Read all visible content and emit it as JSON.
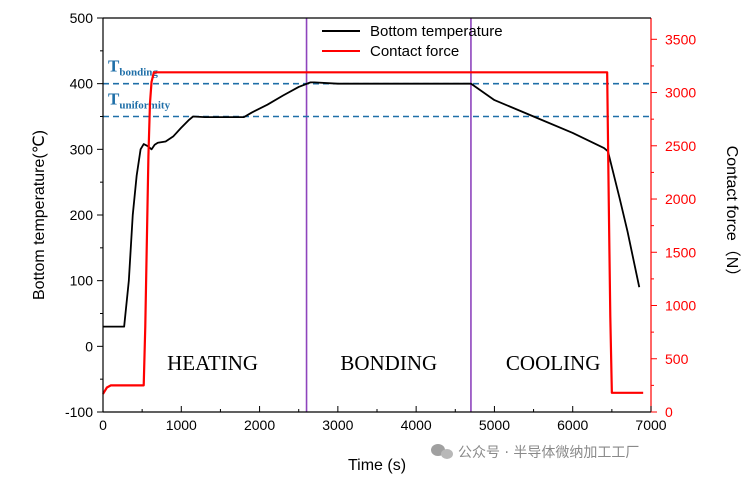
{
  "chart_data": {
    "type": "line",
    "xlabel": "Time (s)",
    "ylabel_left": "Bottom temperature(℃)",
    "ylabel_right": "Contact force（N）",
    "xlim": [
      0,
      7000
    ],
    "ylim_left": [
      -100,
      500
    ],
    "ylim_right": [
      0,
      3700
    ],
    "x_ticks": [
      0,
      1000,
      2000,
      3000,
      4000,
      5000,
      6000,
      7000
    ],
    "y_ticks_left": [
      -100,
      0,
      100,
      200,
      300,
      400,
      500
    ],
    "y_ticks_right": [
      0,
      500,
      1000,
      1500,
      2000,
      2500,
      3000,
      3500
    ],
    "grid": false,
    "legend_position": "top-center",
    "series": [
      {
        "name": "Bottom temperature",
        "axis": "left",
        "color": "#000000",
        "points": [
          [
            0,
            30
          ],
          [
            270,
            30
          ],
          [
            330,
            100
          ],
          [
            380,
            200
          ],
          [
            430,
            260
          ],
          [
            480,
            300
          ],
          [
            520,
            308
          ],
          [
            570,
            305
          ],
          [
            620,
            300
          ],
          [
            660,
            307
          ],
          [
            700,
            310
          ],
          [
            800,
            312
          ],
          [
            900,
            320
          ],
          [
            1000,
            333
          ],
          [
            1100,
            345
          ],
          [
            1150,
            350
          ],
          [
            1300,
            349
          ],
          [
            1500,
            349
          ],
          [
            1800,
            349
          ],
          [
            1900,
            356
          ],
          [
            2100,
            368
          ],
          [
            2300,
            382
          ],
          [
            2500,
            395
          ],
          [
            2650,
            402
          ],
          [
            2700,
            402
          ],
          [
            3000,
            400
          ],
          [
            4000,
            400
          ],
          [
            4700,
            400
          ],
          [
            5000,
            375
          ],
          [
            5500,
            350
          ],
          [
            6000,
            325
          ],
          [
            6400,
            302
          ],
          [
            6450,
            297
          ],
          [
            6600,
            225
          ],
          [
            6700,
            175
          ],
          [
            6850,
            90
          ]
        ]
      },
      {
        "name": "Contact force",
        "axis": "right",
        "color": "#ff0000",
        "points": [
          [
            0,
            170
          ],
          [
            50,
            230
          ],
          [
            100,
            250
          ],
          [
            520,
            250
          ],
          [
            540,
            800
          ],
          [
            560,
            1600
          ],
          [
            580,
            2400
          ],
          [
            600,
            2900
          ],
          [
            620,
            3100
          ],
          [
            650,
            3190
          ],
          [
            1000,
            3190
          ],
          [
            3000,
            3190
          ],
          [
            5000,
            3190
          ],
          [
            6440,
            3190
          ],
          [
            6460,
            2000
          ],
          [
            6480,
            900
          ],
          [
            6500,
            180
          ],
          [
            6900,
            180
          ]
        ]
      }
    ],
    "reference_lines": [
      {
        "label": "T",
        "subscript": "bonding",
        "value": 400,
        "axis": "left",
        "color": "#1f6fa8"
      },
      {
        "label": "T",
        "subscript": "uniformity",
        "value": 350,
        "axis": "left",
        "color": "#1f6fa8"
      }
    ],
    "phase_dividers": [
      {
        "x": 2600,
        "color": "#8e44bd"
      },
      {
        "x": 4700,
        "color": "#8e44bd"
      }
    ],
    "phase_labels": [
      {
        "text": "HEATING",
        "x": 1400,
        "y": -25
      },
      {
        "text": "BONDING",
        "x": 3650,
        "y": -25
      },
      {
        "text": "COOLING",
        "x": 5750,
        "y": -25
      }
    ]
  },
  "watermark_text": "公众号 · 半导体微纳加工工厂",
  "colors": {
    "left_axis": "#000000",
    "right_axis": "#ff0000",
    "reference": "#1f6fa8",
    "divider": "#8e44bd"
  }
}
